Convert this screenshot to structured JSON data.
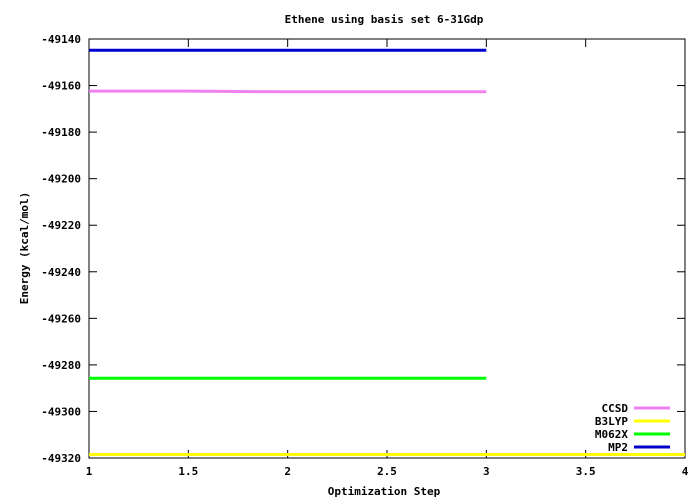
{
  "chart_data": {
    "type": "line",
    "title": "Ethene using basis set 6-31Gdp",
    "xlabel": "Optimization Step",
    "ylabel": "Energy (kcal/mol)",
    "xlim": [
      1,
      4
    ],
    "ylim": [
      -49320,
      -49140
    ],
    "xticks": [
      1,
      1.5,
      2,
      2.5,
      3,
      3.5,
      4
    ],
    "yticks": [
      -49140,
      -49160,
      -49180,
      -49200,
      -49220,
      -49240,
      -49260,
      -49280,
      -49300,
      -49320
    ],
    "xtick_labels": [
      "1",
      "1.5",
      "2",
      "2.5",
      "3",
      "3.5",
      "4"
    ],
    "ytick_labels": [
      "-49140",
      "-49160",
      "-49180",
      "-49200",
      "-49220",
      "-49240",
      "-49260",
      "-49280",
      "-49300",
      "-49320"
    ],
    "legend_position": "bottom-right",
    "grid": false,
    "series": [
      {
        "name": "CCSD",
        "color": "#ee82ee",
        "x": [
          1,
          1.5,
          2,
          3
        ],
        "y": [
          -49162.4,
          -49162.4,
          -49162.7,
          -49162.7
        ]
      },
      {
        "name": "B3LYP",
        "color": "#ffff00",
        "x": [
          1,
          2,
          3,
          4
        ],
        "y": [
          -49318.5,
          -49318.5,
          -49318.5,
          -49318.5
        ]
      },
      {
        "name": "M062X",
        "color": "#00ff00",
        "x": [
          1,
          2,
          3
        ],
        "y": [
          -49285.7,
          -49285.7,
          -49285.7
        ]
      },
      {
        "name": "MP2",
        "color": "#0000cd",
        "x": [
          1,
          2,
          3
        ],
        "y": [
          -49144.8,
          -49144.8,
          -49144.8
        ]
      }
    ]
  }
}
